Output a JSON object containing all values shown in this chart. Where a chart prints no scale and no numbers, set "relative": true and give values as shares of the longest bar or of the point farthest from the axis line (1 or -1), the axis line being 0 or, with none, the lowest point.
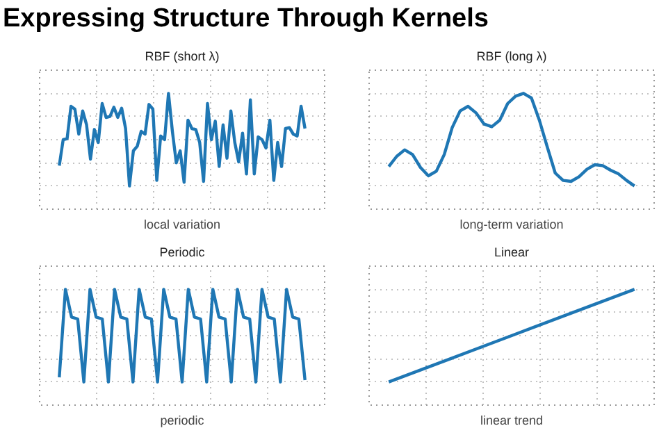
{
  "chart_data": [
    {
      "type": "line",
      "title": "RBF (short λ)",
      "annotations": [
        "Expressing Structure Through Kernels"
      ],
      "xlabel": "local variation",
      "relative": true,
      "grid": true,
      "color": "#1f77b4",
      "categories": [
        null,
        null,
        null,
        null,
        null,
        null,
        null,
        null,
        null,
        null,
        null,
        null,
        null,
        null,
        null,
        null,
        null,
        null,
        null,
        null,
        null,
        null,
        null,
        null,
        null,
        null,
        null,
        null,
        null,
        null,
        null,
        null,
        null,
        null,
        null,
        null,
        null,
        null,
        null,
        null,
        null,
        null,
        null,
        null,
        null,
        null,
        null,
        null,
        null,
        null,
        null,
        null,
        null,
        null,
        null,
        null,
        null,
        null,
        null,
        null,
        null,
        null,
        null,
        null
      ],
      "values": [
        0.22,
        0.5,
        0.51,
        0.86,
        0.83,
        0.56,
        0.81,
        0.66,
        0.29,
        0.61,
        0.47,
        0.89,
        0.74,
        0.75,
        0.85,
        0.74,
        0.84,
        0.62,
        0,
        0.38,
        0.43,
        0.59,
        0.56,
        0.88,
        0.83,
        0.06,
        0.54,
        0.5,
        1,
        0.59,
        0.25,
        0.38,
        0.04,
        0.71,
        0.62,
        0.61,
        0.47,
        0.05,
        0.89,
        0.5,
        0.7,
        0.21,
        0.66,
        0.3,
        0.81,
        0.47,
        0.26,
        0.57,
        0.13,
        0.93,
        0.13,
        0.53,
        0.5,
        0.41,
        0.71,
        0.06,
        0.47,
        0.21,
        0.62,
        0.63,
        0.56,
        0.54,
        0.86,
        0.62
      ]
    },
    {
      "type": "line",
      "title": "RBF (long λ)",
      "xlabel": "long-term variation",
      "relative": true,
      "grid": true,
      "color": "#1f77b4",
      "categories": [
        null,
        null,
        null,
        null,
        null,
        null,
        null,
        null,
        null,
        null,
        null,
        null,
        null,
        null,
        null,
        null,
        null,
        null,
        null,
        null,
        null,
        null,
        null,
        null,
        null,
        null,
        null,
        null,
        null,
        null,
        null,
        null
      ],
      "values": [
        0.21,
        0.32,
        0.39,
        0.34,
        0.2,
        0.11,
        0.16,
        0.34,
        0.63,
        0.81,
        0.86,
        0.79,
        0.67,
        0.64,
        0.71,
        0.89,
        0.97,
        1,
        0.95,
        0.71,
        0.42,
        0.14,
        0.06,
        0.05,
        0.1,
        0.18,
        0.23,
        0.22,
        0.17,
        0.13,
        0.06,
        0
      ]
    },
    {
      "type": "line",
      "title": "Periodic",
      "xlabel": "periodic",
      "relative": true,
      "grid": true,
      "color": "#1f77b4",
      "categories": [
        null,
        null,
        null,
        null,
        null,
        null,
        null,
        null,
        null,
        null,
        null,
        null,
        null,
        null,
        null,
        null,
        null,
        null,
        null,
        null,
        null,
        null,
        null,
        null,
        null,
        null,
        null,
        null,
        null,
        null,
        null,
        null,
        null,
        null,
        null,
        null,
        null,
        null,
        null,
        null,
        null
      ],
      "values": [
        0.05,
        1,
        0.7,
        0.68,
        0,
        1,
        0.7,
        0.68,
        0,
        1,
        0.7,
        0.68,
        0,
        1,
        0.7,
        0.68,
        0,
        1,
        0.7,
        0.68,
        0,
        1,
        0.7,
        0.68,
        0,
        1,
        0.7,
        0.68,
        0,
        1,
        0.7,
        0.68,
        0,
        1,
        0.7,
        0.68,
        0,
        1,
        0.7,
        0.68,
        0.02
      ]
    },
    {
      "type": "line",
      "title": "Linear",
      "xlabel": "linear trend",
      "relative": true,
      "grid": true,
      "color": "#1f77b4",
      "categories": [
        null,
        null,
        null,
        null,
        null
      ],
      "values": [
        0,
        0.25,
        0.5,
        0.75,
        1
      ]
    }
  ]
}
